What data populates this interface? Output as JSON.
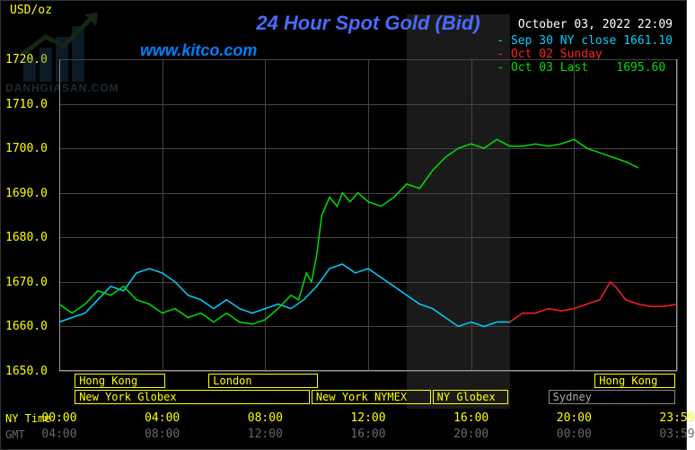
{
  "chart": {
    "type": "line",
    "title": "24 Hour Spot Gold (Bid)",
    "title_color": "#4a6aff",
    "website": "www.kitco.com",
    "website_color": "#0080ff",
    "datetime": "October 03, 2022 22:09",
    "background": "#000000",
    "y_axis": {
      "unit": "USD/oz",
      "min": 1650.0,
      "max": 1720.0,
      "step": 10.0,
      "ticks": [
        "1650.0",
        "1660.0",
        "1670.0",
        "1680.0",
        "1690.0",
        "1700.0",
        "1710.0",
        "1720.0"
      ],
      "color": "#ffff00"
    },
    "x_axis": {
      "min_h": 0,
      "max_h": 24,
      "ny_label": "NY Time",
      "gmt_label": "GMT",
      "ny_ticks": [
        {
          "h": 0,
          "l": "00:00"
        },
        {
          "h": 4,
          "l": "04:00"
        },
        {
          "h": 8,
          "l": "08:00"
        },
        {
          "h": 12,
          "l": "12:00"
        },
        {
          "h": 16,
          "l": "16:00"
        },
        {
          "h": 20,
          "l": "20:00"
        },
        {
          "h": 24,
          "l": "23:59"
        }
      ],
      "gmt_ticks": [
        {
          "h": 0,
          "l": "04:00"
        },
        {
          "h": 4,
          "l": "08:00"
        },
        {
          "h": 8,
          "l": "12:00"
        },
        {
          "h": 12,
          "l": "16:00"
        },
        {
          "h": 16,
          "l": "20:00"
        },
        {
          "h": 20,
          "l": "00:00"
        },
        {
          "h": 24,
          "l": "03:59"
        }
      ]
    },
    "night_shade": {
      "start_h": 13.5,
      "end_h": 17.5
    },
    "legend": [
      {
        "text": "Sep 30 NY close 1661.10",
        "color": "#00d0ff"
      },
      {
        "text": "Oct 02 Sunday",
        "color": "#ff2020"
      },
      {
        "text": "Oct 03 Last    1695.60",
        "color": "#00e000"
      }
    ],
    "legend_prefix": "- ",
    "markets_top": [
      {
        "label": "Hong Kong",
        "start_h": 0.6,
        "end_h": 4.2
      },
      {
        "label": "London",
        "start_h": 5.8,
        "end_h": 10.1
      },
      {
        "label": "Hong Kong",
        "start_h": 20.8,
        "end_h": 24.0
      }
    ],
    "markets_bot": [
      {
        "label": "New York Globex",
        "start_h": 0.6,
        "end_h": 9.8,
        "color": "#ffff00"
      },
      {
        "label": "New York NYMEX",
        "start_h": 9.8,
        "end_h": 14.5,
        "color": "#ffff00"
      },
      {
        "label": "NY Globex",
        "start_h": 14.5,
        "end_h": 17.5,
        "color": "#ffff00"
      },
      {
        "label": "Sydney",
        "start_h": 19.0,
        "end_h": 24.0,
        "color": "#888888"
      }
    ],
    "series": [
      {
        "name": "sep30",
        "color": "#00d0ff",
        "width": 1.5,
        "points": [
          [
            0,
            1661
          ],
          [
            0.5,
            1662
          ],
          [
            1,
            1663
          ],
          [
            1.5,
            1666
          ],
          [
            2,
            1669
          ],
          [
            2.5,
            1668
          ],
          [
            3,
            1672
          ],
          [
            3.5,
            1673
          ],
          [
            4,
            1672
          ],
          [
            4.5,
            1670
          ],
          [
            5,
            1667
          ],
          [
            5.5,
            1666
          ],
          [
            6,
            1664
          ],
          [
            6.5,
            1666
          ],
          [
            7,
            1664
          ],
          [
            7.5,
            1663
          ],
          [
            8,
            1664
          ],
          [
            8.5,
            1665
          ],
          [
            9,
            1664
          ],
          [
            9.5,
            1666
          ],
          [
            10,
            1669
          ],
          [
            10.5,
            1673
          ],
          [
            11,
            1674
          ],
          [
            11.5,
            1672
          ],
          [
            12,
            1673
          ],
          [
            12.5,
            1671
          ],
          [
            13,
            1669
          ],
          [
            13.5,
            1667
          ],
          [
            14,
            1665
          ],
          [
            14.5,
            1664
          ],
          [
            15,
            1662
          ],
          [
            15.5,
            1660
          ],
          [
            16,
            1661
          ],
          [
            16.5,
            1660
          ],
          [
            17,
            1661
          ],
          [
            17.5,
            1661
          ]
        ]
      },
      {
        "name": "oct02",
        "color": "#ff2020",
        "width": 1.5,
        "points": [
          [
            17.5,
            1661
          ],
          [
            18,
            1663
          ],
          [
            18.5,
            1663
          ],
          [
            19,
            1664
          ],
          [
            19.5,
            1663.5
          ],
          [
            20,
            1664
          ],
          [
            20.5,
            1665
          ],
          [
            21,
            1666
          ],
          [
            21.4,
            1670
          ],
          [
            21.6,
            1669
          ],
          [
            22,
            1666
          ],
          [
            22.5,
            1665
          ],
          [
            23,
            1664.5
          ],
          [
            23.5,
            1664.5
          ],
          [
            24,
            1665
          ]
        ]
      },
      {
        "name": "oct03",
        "color": "#00e000",
        "width": 1.5,
        "points": [
          [
            0,
            1665
          ],
          [
            0.5,
            1663
          ],
          [
            1,
            1665
          ],
          [
            1.5,
            1668
          ],
          [
            2,
            1667
          ],
          [
            2.5,
            1669
          ],
          [
            3,
            1666
          ],
          [
            3.5,
            1665
          ],
          [
            4,
            1663
          ],
          [
            4.5,
            1664
          ],
          [
            5,
            1662
          ],
          [
            5.5,
            1663
          ],
          [
            6,
            1661
          ],
          [
            6.5,
            1663
          ],
          [
            7,
            1661
          ],
          [
            7.5,
            1660.5
          ],
          [
            8,
            1661.5
          ],
          [
            8.5,
            1664
          ],
          [
            9,
            1667
          ],
          [
            9.3,
            1666
          ],
          [
            9.6,
            1672
          ],
          [
            9.8,
            1670
          ],
          [
            10,
            1676
          ],
          [
            10.2,
            1685
          ],
          [
            10.5,
            1689
          ],
          [
            10.8,
            1687
          ],
          [
            11,
            1690
          ],
          [
            11.3,
            1688
          ],
          [
            11.6,
            1690
          ],
          [
            12,
            1688
          ],
          [
            12.5,
            1687
          ],
          [
            13,
            1689
          ],
          [
            13.5,
            1692
          ],
          [
            14,
            1691
          ],
          [
            14.5,
            1695
          ],
          [
            15,
            1698
          ],
          [
            15.5,
            1700
          ],
          [
            16,
            1701
          ],
          [
            16.5,
            1700
          ],
          [
            17,
            1702
          ],
          [
            17.5,
            1700.5
          ],
          [
            18,
            1700.5
          ],
          [
            18.5,
            1701
          ],
          [
            19,
            1700.5
          ],
          [
            19.5,
            1701
          ],
          [
            20,
            1702
          ],
          [
            20.5,
            1700
          ],
          [
            21,
            1699
          ],
          [
            21.5,
            1698
          ],
          [
            22,
            1697
          ],
          [
            22.5,
            1695.6
          ]
        ]
      }
    ],
    "watermark": "DANHGIASAN.COM"
  }
}
